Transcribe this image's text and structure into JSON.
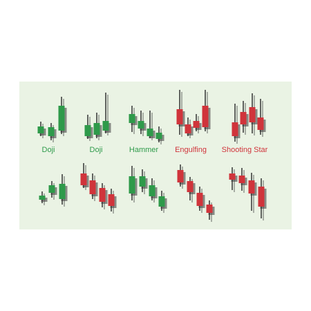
{
  "labels": [
    "Doji",
    "Doji",
    "Hammer",
    "Engulfing",
    "Shooting Star"
  ]
}
